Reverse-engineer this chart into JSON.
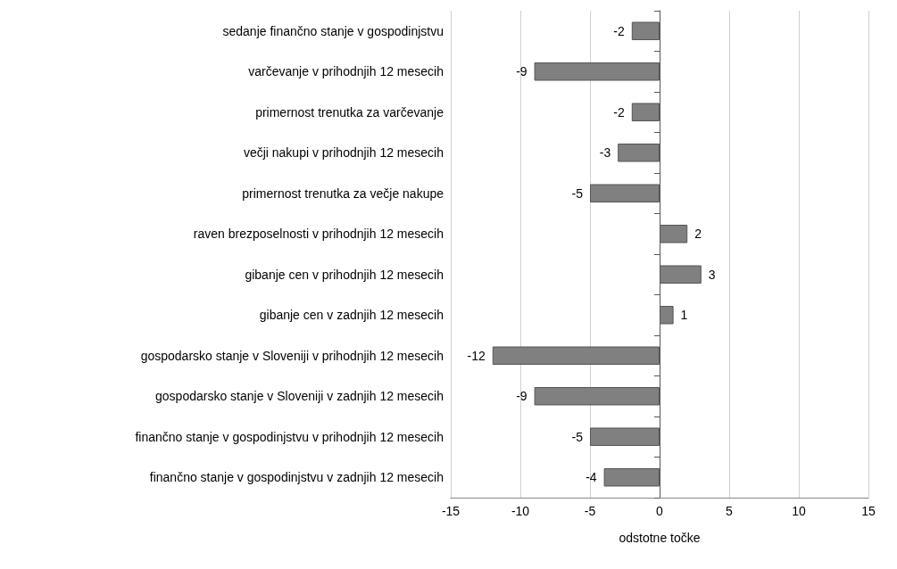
{
  "chart_data": {
    "type": "bar",
    "orientation": "horizontal",
    "xlabel": "odstotne točke",
    "categories": [
      "sedanje finančno stanje v gospodinjstvu",
      "varčevanje v prihodnjih 12 mesecih",
      "primernost trenutka za varčevanje",
      "večji nakupi v prihodnjih 12 mesecih",
      "primernost trenutka za večje nakupe",
      "raven brezposelnosti v prihodnjih 12 mesecih",
      "gibanje cen v prihodnjih 12 mesecih",
      "gibanje cen v zadnjih 12 mesecih",
      "gospodarsko stanje v Sloveniji v prihodnjih 12 mesecih",
      "gospodarsko stanje v Sloveniji v zadnjih 12 mesecih",
      "finančno stanje v gospodinjstvu v prihodnjih 12 mesecih",
      "finančno stanje v gospodinjstvu v zadnjih 12 mesecih"
    ],
    "values": [
      -2,
      -9,
      -2,
      -3,
      -5,
      2,
      3,
      1,
      -12,
      -9,
      -5,
      -4
    ],
    "color": "#808080",
    "xlim": [
      -15,
      15
    ],
    "xticks": [
      -15,
      -10,
      -5,
      0,
      5,
      10,
      15
    ],
    "grid": "x",
    "data_labels": true
  }
}
